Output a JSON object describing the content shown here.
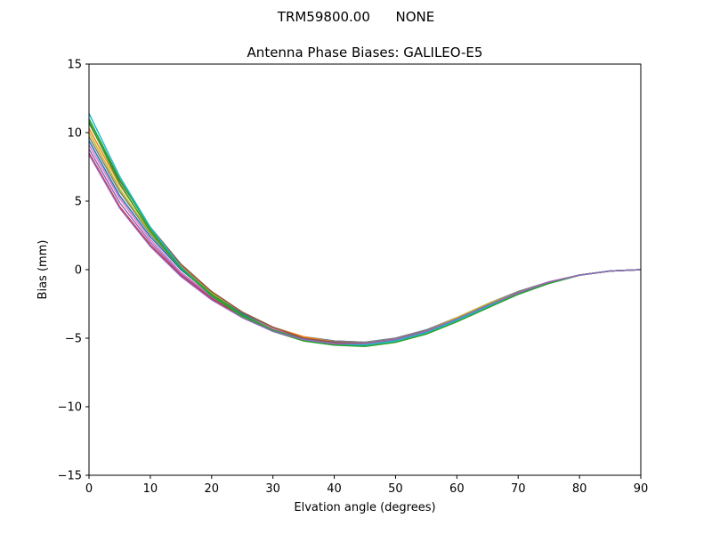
{
  "suptitle": "TRM59800.00      NONE",
  "chart_data": {
    "type": "line",
    "title": "Antenna Phase Biases: GALILEO-E5",
    "xlabel": "Elvation angle (degrees)",
    "ylabel": "Bias (mm)",
    "xlim": [
      0,
      90
    ],
    "ylim": [
      -15,
      15
    ],
    "xticks": [
      "0",
      "10",
      "20",
      "30",
      "40",
      "50",
      "60",
      "70",
      "80",
      "90"
    ],
    "yticks": [
      "15",
      "10",
      "5",
      "0",
      "−5",
      "−10",
      "−15"
    ],
    "grid": false,
    "legend": "none",
    "x": [
      0,
      5,
      10,
      15,
      20,
      25,
      30,
      35,
      40,
      45,
      50,
      55,
      60,
      65,
      70,
      75,
      80,
      85,
      90
    ],
    "series": [
      {
        "color": "#d62728",
        "values": [
          8.5,
          4.6,
          1.8,
          -0.4,
          -2.1,
          -3.4,
          -4.4,
          -5.0,
          -5.3,
          -5.4,
          -5.1,
          -4.5,
          -3.6,
          -2.6,
          -1.7,
          -0.9,
          -0.4,
          -0.1,
          0.0
        ]
      },
      {
        "color": "#9467bd",
        "values": [
          8.8,
          4.9,
          2.0,
          -0.3,
          -2.0,
          -3.3,
          -4.3,
          -5.0,
          -5.3,
          -5.4,
          -5.1,
          -4.5,
          -3.6,
          -2.6,
          -1.7,
          -0.9,
          -0.4,
          -0.1,
          0.0
        ]
      },
      {
        "color": "#e377c2",
        "values": [
          9.1,
          5.2,
          2.2,
          -0.2,
          -1.9,
          -3.2,
          -4.3,
          -4.9,
          -5.2,
          -5.3,
          -5.0,
          -4.4,
          -3.5,
          -2.5,
          -1.6,
          -0.9,
          -0.4,
          -0.1,
          0.0
        ]
      },
      {
        "color": "#1f77b4",
        "values": [
          9.4,
          5.4,
          2.4,
          0.0,
          -1.8,
          -3.2,
          -4.2,
          -4.9,
          -5.2,
          -5.3,
          -5.0,
          -4.4,
          -3.5,
          -2.5,
          -1.6,
          -0.9,
          -0.4,
          -0.1,
          0.0
        ]
      },
      {
        "color": "#7f7f7f",
        "values": [
          9.7,
          5.7,
          2.6,
          0.1,
          -1.7,
          -3.1,
          -4.2,
          -4.9,
          -5.2,
          -5.3,
          -5.0,
          -4.4,
          -3.5,
          -2.5,
          -1.6,
          -0.9,
          -0.4,
          -0.1,
          0.0
        ]
      },
      {
        "color": "#bcbd22",
        "values": [
          10.0,
          5.9,
          2.7,
          0.2,
          -1.7,
          -3.1,
          -4.2,
          -4.9,
          -5.3,
          -5.4,
          -5.1,
          -4.5,
          -3.5,
          -2.5,
          -1.7,
          -0.9,
          -0.4,
          -0.1,
          0.0
        ]
      },
      {
        "color": "#ff7f0e",
        "values": [
          10.3,
          6.2,
          2.9,
          0.3,
          -1.6,
          -3.1,
          -4.2,
          -4.9,
          -5.3,
          -5.4,
          -5.1,
          -4.5,
          -3.6,
          -2.6,
          -1.7,
          -0.9,
          -0.4,
          -0.1,
          0.0
        ]
      },
      {
        "color": "#8c564b",
        "values": [
          10.7,
          6.5,
          3.1,
          0.4,
          -1.6,
          -3.1,
          -4.2,
          -5.0,
          -5.3,
          -5.4,
          -5.1,
          -4.5,
          -3.6,
          -2.6,
          -1.7,
          -1.0,
          -0.4,
          -0.1,
          0.0
        ]
      },
      {
        "color": "#2ca02c",
        "values": [
          11.0,
          6.6,
          3.0,
          0.2,
          -1.8,
          -3.3,
          -4.4,
          -5.1,
          -5.4,
          -5.5,
          -5.2,
          -4.6,
          -3.7,
          -2.7,
          -1.8,
          -1.0,
          -0.4,
          -0.1,
          0.0
        ]
      },
      {
        "color": "#17becf",
        "values": [
          11.4,
          6.8,
          3.1,
          0.2,
          -1.9,
          -3.4,
          -4.5,
          -5.1,
          -5.5,
          -5.5,
          -5.2,
          -4.6,
          -3.7,
          -2.7,
          -1.8,
          -1.0,
          -0.4,
          -0.1,
          0.0
        ]
      },
      {
        "color": "#2ca02c",
        "values": [
          10.8,
          6.3,
          2.8,
          0.1,
          -1.9,
          -3.4,
          -4.5,
          -5.2,
          -5.5,
          -5.6,
          -5.3,
          -4.7,
          -3.8,
          -2.8,
          -1.8,
          -1.0,
          -0.4,
          -0.1,
          0.0
        ]
      },
      {
        "color": "#9467bd",
        "values": [
          8.4,
          4.5,
          1.7,
          -0.5,
          -2.2,
          -3.5,
          -4.5,
          -5.1,
          -5.4,
          -5.4,
          -5.1,
          -4.5,
          -3.6,
          -2.6,
          -1.7,
          -0.9,
          -0.4,
          -0.1,
          0.0
        ]
      }
    ]
  }
}
